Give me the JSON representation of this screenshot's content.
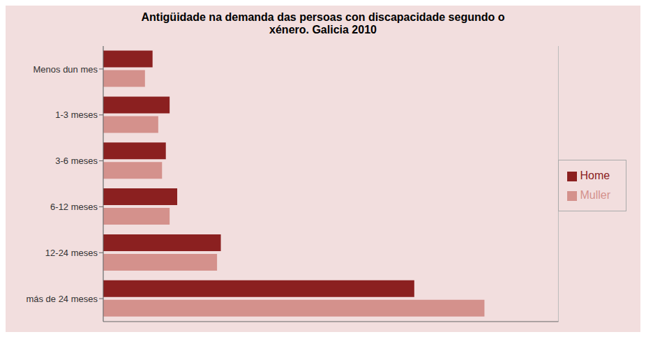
{
  "chart_data": {
    "type": "bar",
    "orientation": "horizontal",
    "title": "Antigüidade na demanda das persoas con discapacidade segundo o\nxénero. Galicia 2010",
    "categories": [
      "más de 24 meses",
      "12-24 meses",
      "6-12 meses",
      "3-6 meses",
      "1-3 meses",
      "Menos dun mes"
    ],
    "series": [
      {
        "name": "Home",
        "color": "#8B2020",
        "values": [
          820,
          310,
          195,
          165,
          175,
          130
        ]
      },
      {
        "name": "Muller",
        "color": "#D4918C",
        "values": [
          1005,
          300,
          175,
          155,
          145,
          110
        ]
      }
    ],
    "xlim": [
      0,
      1200
    ],
    "xticks": [
      0,
      120,
      240,
      360,
      480,
      600,
      720,
      840,
      960,
      1080,
      1200
    ],
    "grid": true,
    "legend": "right",
    "tick_labels": "y"
  }
}
